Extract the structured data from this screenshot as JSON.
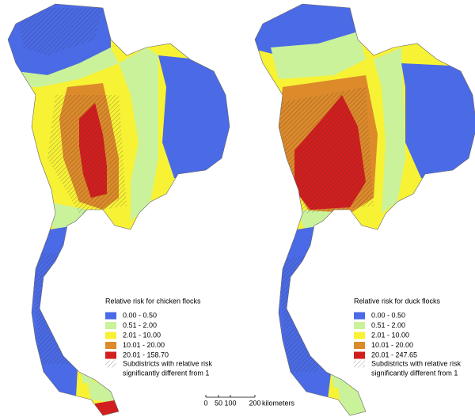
{
  "maps": [
    {
      "legend_title": "Relative risk for chicken flocks",
      "legend": [
        {
          "label": "0.00 - 0.50",
          "color": "#4a6ae6"
        },
        {
          "label": "0.51 - 2.00",
          "color": "#c9f29b"
        },
        {
          "label": "2.01 - 10.00",
          "color": "#f8f235"
        },
        {
          "label": "10.01 - 20.00",
          "color": "#dd8a2a"
        },
        {
          "label": "20.01 - 158.70",
          "color": "#d21e1e"
        }
      ],
      "hatch_label": [
        "Subdistricts with relative risk",
        "significantly different from 1"
      ]
    },
    {
      "legend_title": "Relative risk for duck flocks",
      "legend": [
        {
          "label": "0.00 - 0.50",
          "color": "#4a6ae6"
        },
        {
          "label": "0.51 - 2.00",
          "color": "#c9f29b"
        },
        {
          "label": "2.01 - 10.00",
          "color": "#f8f235"
        },
        {
          "label": "10.01 - 20.00",
          "color": "#dd8a2a"
        },
        {
          "label": "20.01 - 247.65",
          "color": "#d21e1e"
        }
      ],
      "hatch_label": [
        "Subdistricts with relative risk",
        "significantly different from 1"
      ]
    }
  ],
  "scale_bar": {
    "ticks": [
      "0",
      "50",
      "100",
      "200"
    ],
    "unit": "kilometers"
  }
}
